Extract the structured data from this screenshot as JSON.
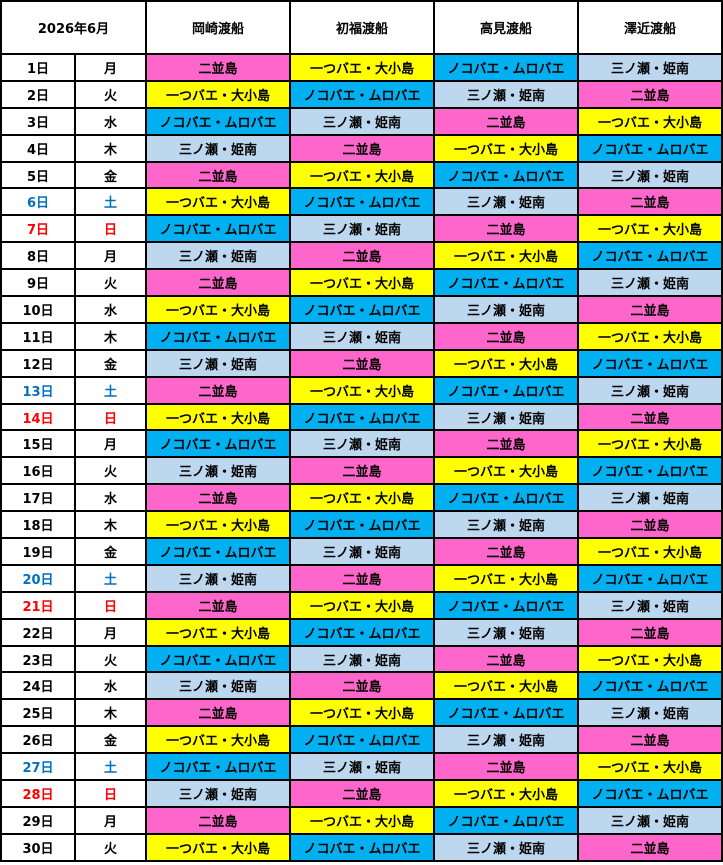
{
  "header": {
    "month": "2026年6月",
    "operators": [
      "岡崎渡船",
      "初福渡船",
      "高見渡船",
      "澤近渡船"
    ]
  },
  "colors": {
    "二並島": "#FF66CC",
    "一つバエ・大小島": "#FFFF00",
    "ノコバエ・ムロバエ": "#00B0F0",
    "三ノ瀬・姫南": "#BDD7EE",
    "saturday_text": "#0070C0",
    "sunday_text": "#FF0000"
  },
  "rows": [
    {
      "date": "1日",
      "dow": "月",
      "spots": [
        "二並島",
        "一つバエ・大小島",
        "ノコバエ・ムロバエ",
        "三ノ瀬・姫南"
      ]
    },
    {
      "date": "2日",
      "dow": "火",
      "spots": [
        "一つバエ・大小島",
        "ノコバエ・ムロバエ",
        "三ノ瀬・姫南",
        "二並島"
      ]
    },
    {
      "date": "3日",
      "dow": "水",
      "spots": [
        "ノコバエ・ムロバエ",
        "三ノ瀬・姫南",
        "二並島",
        "一つバエ・大小島"
      ]
    },
    {
      "date": "4日",
      "dow": "木",
      "spots": [
        "三ノ瀬・姫南",
        "二並島",
        "一つバエ・大小島",
        "ノコバエ・ムロバエ"
      ]
    },
    {
      "date": "5日",
      "dow": "金",
      "spots": [
        "二並島",
        "一つバエ・大小島",
        "ノコバエ・ムロバエ",
        "三ノ瀬・姫南"
      ]
    },
    {
      "date": "6日",
      "dow": "土",
      "spots": [
        "一つバエ・大小島",
        "ノコバエ・ムロバエ",
        "三ノ瀬・姫南",
        "二並島"
      ]
    },
    {
      "date": "7日",
      "dow": "日",
      "spots": [
        "ノコバエ・ムロバエ",
        "三ノ瀬・姫南",
        "二並島",
        "一つバエ・大小島"
      ]
    },
    {
      "date": "8日",
      "dow": "月",
      "spots": [
        "三ノ瀬・姫南",
        "二並島",
        "一つバエ・大小島",
        "ノコバエ・ムロバエ"
      ]
    },
    {
      "date": "9日",
      "dow": "火",
      "spots": [
        "二並島",
        "一つバエ・大小島",
        "ノコバエ・ムロバエ",
        "三ノ瀬・姫南"
      ]
    },
    {
      "date": "10日",
      "dow": "水",
      "spots": [
        "一つバエ・大小島",
        "ノコバエ・ムロバエ",
        "三ノ瀬・姫南",
        "二並島"
      ]
    },
    {
      "date": "11日",
      "dow": "木",
      "spots": [
        "ノコバエ・ムロバエ",
        "三ノ瀬・姫南",
        "二並島",
        "一つバエ・大小島"
      ]
    },
    {
      "date": "12日",
      "dow": "金",
      "spots": [
        "三ノ瀬・姫南",
        "二並島",
        "一つバエ・大小島",
        "ノコバエ・ムロバエ"
      ]
    },
    {
      "date": "13日",
      "dow": "土",
      "spots": [
        "二並島",
        "一つバエ・大小島",
        "ノコバエ・ムロバエ",
        "三ノ瀬・姫南"
      ]
    },
    {
      "date": "14日",
      "dow": "日",
      "spots": [
        "一つバエ・大小島",
        "ノコバエ・ムロバエ",
        "三ノ瀬・姫南",
        "二並島"
      ]
    },
    {
      "date": "15日",
      "dow": "月",
      "spots": [
        "ノコバエ・ムロバエ",
        "三ノ瀬・姫南",
        "二並島",
        "一つバエ・大小島"
      ]
    },
    {
      "date": "16日",
      "dow": "火",
      "spots": [
        "三ノ瀬・姫南",
        "二並島",
        "一つバエ・大小島",
        "ノコバエ・ムロバエ"
      ]
    },
    {
      "date": "17日",
      "dow": "水",
      "spots": [
        "二並島",
        "一つバエ・大小島",
        "ノコバエ・ムロバエ",
        "三ノ瀬・姫南"
      ]
    },
    {
      "date": "18日",
      "dow": "木",
      "spots": [
        "一つバエ・大小島",
        "ノコバエ・ムロバエ",
        "三ノ瀬・姫南",
        "二並島"
      ]
    },
    {
      "date": "19日",
      "dow": "金",
      "spots": [
        "ノコバエ・ムロバエ",
        "三ノ瀬・姫南",
        "二並島",
        "一つバエ・大小島"
      ]
    },
    {
      "date": "20日",
      "dow": "土",
      "spots": [
        "三ノ瀬・姫南",
        "二並島",
        "一つバエ・大小島",
        "ノコバエ・ムロバエ"
      ]
    },
    {
      "date": "21日",
      "dow": "日",
      "spots": [
        "二並島",
        "一つバエ・大小島",
        "ノコバエ・ムロバエ",
        "三ノ瀬・姫南"
      ]
    },
    {
      "date": "22日",
      "dow": "月",
      "spots": [
        "一つバエ・大小島",
        "ノコバエ・ムロバエ",
        "三ノ瀬・姫南",
        "二並島"
      ]
    },
    {
      "date": "23日",
      "dow": "火",
      "spots": [
        "ノコバエ・ムロバエ",
        "三ノ瀬・姫南",
        "二並島",
        "一つバエ・大小島"
      ]
    },
    {
      "date": "24日",
      "dow": "水",
      "spots": [
        "三ノ瀬・姫南",
        "二並島",
        "一つバエ・大小島",
        "ノコバエ・ムロバエ"
      ]
    },
    {
      "date": "25日",
      "dow": "木",
      "spots": [
        "二並島",
        "一つバエ・大小島",
        "ノコバエ・ムロバエ",
        "三ノ瀬・姫南"
      ]
    },
    {
      "date": "26日",
      "dow": "金",
      "spots": [
        "一つバエ・大小島",
        "ノコバエ・ムロバエ",
        "三ノ瀬・姫南",
        "二並島"
      ]
    },
    {
      "date": "27日",
      "dow": "土",
      "spots": [
        "ノコバエ・ムロバエ",
        "三ノ瀬・姫南",
        "二並島",
        "一つバエ・大小島"
      ]
    },
    {
      "date": "28日",
      "dow": "日",
      "spots": [
        "三ノ瀬・姫南",
        "二並島",
        "一つバエ・大小島",
        "ノコバエ・ムロバエ"
      ]
    },
    {
      "date": "29日",
      "dow": "月",
      "spots": [
        "二並島",
        "一つバエ・大小島",
        "ノコバエ・ムロバエ",
        "三ノ瀬・姫南"
      ]
    },
    {
      "date": "30日",
      "dow": "火",
      "spots": [
        "一つバエ・大小島",
        "ノコバエ・ムロバエ",
        "三ノ瀬・姫南",
        "二並島"
      ]
    }
  ]
}
